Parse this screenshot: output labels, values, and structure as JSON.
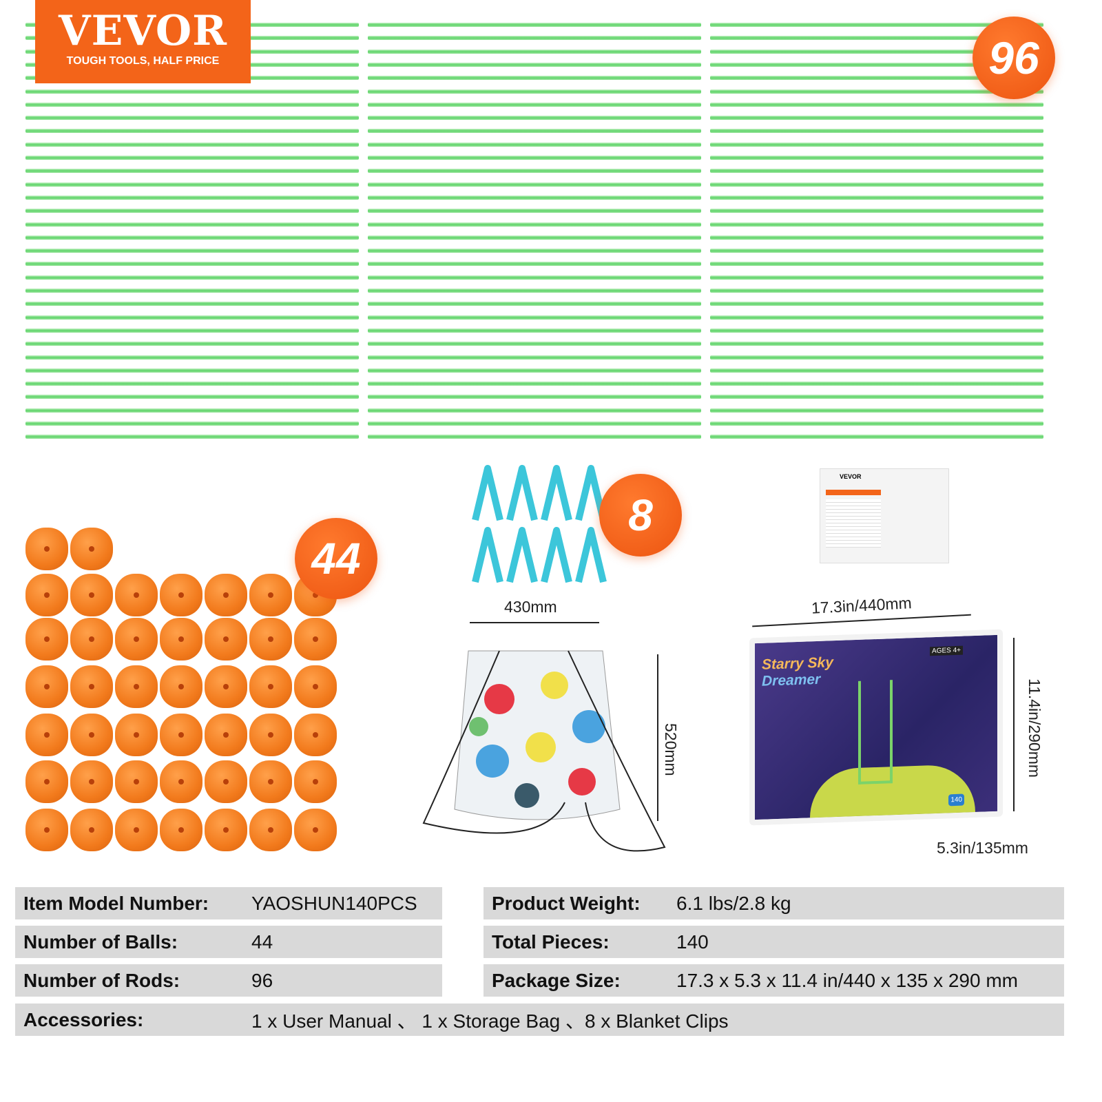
{
  "logo": {
    "brand": "VEVOR",
    "tagline": "TOUGH TOOLS, HALF PRICE",
    "color": "#f36419"
  },
  "rods": {
    "count_label": "96",
    "color": "#5fd46a"
  },
  "balls": {
    "count_label": "44",
    "color": "#f27a1c"
  },
  "clips": {
    "count_label": "8",
    "color": "#3cc6da"
  },
  "bag": {
    "width_label": "430mm",
    "height_label": "520mm"
  },
  "box": {
    "length_label": "17.3in/440mm",
    "height_label": "11.4in/290mm",
    "depth_label": "5.3in/135mm",
    "title_line1": "Starry Sky",
    "title_line2": "Dreamer",
    "ages": "AGES 4+",
    "pieces_badge": "140"
  },
  "manual": {
    "brand": "VEVOR"
  },
  "specs": {
    "left": [
      {
        "key": "Item Model Number:",
        "value": "YAOSHUN140PCS"
      },
      {
        "key": "Number of Balls:",
        "value": "44"
      },
      {
        "key": "Number of Rods:",
        "value": "96"
      }
    ],
    "right": [
      {
        "key": "Product Weight:",
        "value": "6.1 lbs/2.8 kg"
      },
      {
        "key": "Total Pieces:",
        "value": "140"
      },
      {
        "key": "Package Size:",
        "value": "17.3 x 5.3 x 11.4 in/440 x 135 x 290 mm"
      }
    ],
    "accessories": {
      "key": "Accessories:",
      "value": "1 x User Manual 、 1 x Storage Bag 、8 x Blanket Clips"
    }
  }
}
